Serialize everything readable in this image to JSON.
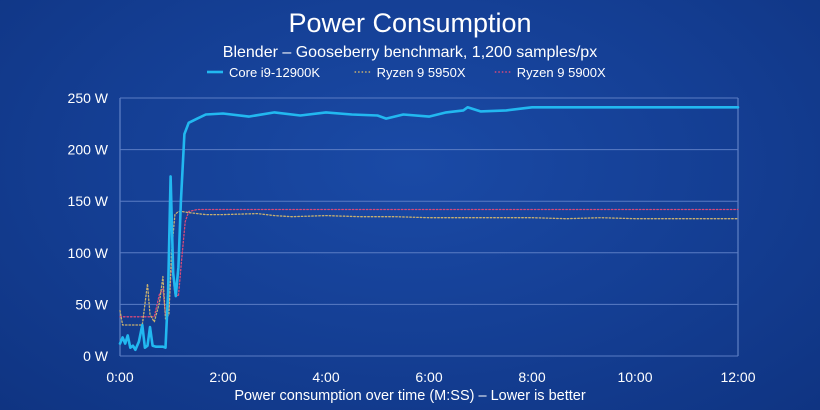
{
  "chart_data": {
    "type": "line",
    "title": "Power Consumption",
    "subtitle": "Blender – Gooseberry benchmark, 1,200 samples/px",
    "xlabel": "Power consumption over time (M:SS) – Lower is better",
    "ylabel": "",
    "xlim": [
      0,
      720
    ],
    "ylim": [
      0,
      250
    ],
    "x_ticks": [
      {
        "value": 0,
        "label": "0:00"
      },
      {
        "value": 120,
        "label": "2:00"
      },
      {
        "value": 240,
        "label": "4:00"
      },
      {
        "value": 360,
        "label": "6:00"
      },
      {
        "value": 480,
        "label": "8:00"
      },
      {
        "value": 600,
        "label": "10:00"
      },
      {
        "value": 720,
        "label": "12:00"
      }
    ],
    "y_ticks": [
      {
        "value": 0,
        "label": "0 W"
      },
      {
        "value": 50,
        "label": "50 W"
      },
      {
        "value": 100,
        "label": "100 W"
      },
      {
        "value": 150,
        "label": "150 W"
      },
      {
        "value": 200,
        "label": "200 W"
      },
      {
        "value": 250,
        "label": "250 W"
      }
    ],
    "grid": "horizontal",
    "legend_position": "top",
    "series": [
      {
        "name": "Core i9-12900K",
        "color": "#22b8f0",
        "style": "solid",
        "points": [
          [
            0,
            12
          ],
          [
            3,
            18
          ],
          [
            6,
            12
          ],
          [
            9,
            20
          ],
          [
            12,
            8
          ],
          [
            15,
            10
          ],
          [
            18,
            6
          ],
          [
            22,
            14
          ],
          [
            26,
            30
          ],
          [
            29,
            8
          ],
          [
            32,
            10
          ],
          [
            35,
            28
          ],
          [
            38,
            10
          ],
          [
            42,
            9
          ],
          [
            46,
            9
          ],
          [
            50,
            9
          ],
          [
            53,
            8
          ],
          [
            56,
            62
          ],
          [
            59,
            174
          ],
          [
            62,
            80
          ],
          [
            65,
            58
          ],
          [
            68,
            86
          ],
          [
            71,
            150
          ],
          [
            75,
            215
          ],
          [
            80,
            226
          ],
          [
            90,
            230
          ],
          [
            100,
            234
          ],
          [
            120,
            235
          ],
          [
            150,
            232
          ],
          [
            180,
            236
          ],
          [
            210,
            233
          ],
          [
            240,
            236
          ],
          [
            270,
            234
          ],
          [
            300,
            233
          ],
          [
            310,
            230
          ],
          [
            330,
            234
          ],
          [
            360,
            232
          ],
          [
            380,
            236
          ],
          [
            400,
            238
          ],
          [
            405,
            241
          ],
          [
            420,
            237
          ],
          [
            450,
            238
          ],
          [
            470,
            240
          ],
          [
            480,
            241
          ],
          [
            520,
            241
          ],
          [
            560,
            241
          ],
          [
            600,
            241
          ],
          [
            640,
            241
          ],
          [
            680,
            241
          ],
          [
            720,
            241
          ]
        ]
      },
      {
        "name": "Ryzen 9 5950X",
        "color": "#c8b070",
        "style": "dotted",
        "points": [
          [
            0,
            44
          ],
          [
            3,
            30
          ],
          [
            6,
            30
          ],
          [
            12,
            30
          ],
          [
            20,
            30
          ],
          [
            26,
            30
          ],
          [
            29,
            50
          ],
          [
            32,
            70
          ],
          [
            35,
            40
          ],
          [
            40,
            33
          ],
          [
            46,
            52
          ],
          [
            50,
            77
          ],
          [
            53,
            36
          ],
          [
            57,
            40
          ],
          [
            60,
            100
          ],
          [
            64,
            137
          ],
          [
            68,
            140
          ],
          [
            72,
            140
          ],
          [
            80,
            139
          ],
          [
            100,
            137
          ],
          [
            120,
            137
          ],
          [
            160,
            138
          ],
          [
            180,
            136
          ],
          [
            200,
            135
          ],
          [
            240,
            136
          ],
          [
            280,
            135
          ],
          [
            320,
            135
          ],
          [
            360,
            134
          ],
          [
            400,
            134
          ],
          [
            440,
            134
          ],
          [
            480,
            134
          ],
          [
            520,
            133
          ],
          [
            560,
            134
          ],
          [
            600,
            133
          ],
          [
            640,
            133
          ],
          [
            680,
            133
          ],
          [
            720,
            133
          ]
        ]
      },
      {
        "name": "Ryzen 9 5900X",
        "color": "#d64a7a",
        "style": "dotted",
        "points": [
          [
            0,
            38
          ],
          [
            10,
            38
          ],
          [
            20,
            38
          ],
          [
            30,
            38
          ],
          [
            40,
            38
          ],
          [
            46,
            60
          ],
          [
            50,
            65
          ],
          [
            53,
            40
          ],
          [
            57,
            45
          ],
          [
            60,
            90
          ],
          [
            64,
            60
          ],
          [
            68,
            58
          ],
          [
            72,
            95
          ],
          [
            76,
            130
          ],
          [
            80,
            140
          ],
          [
            90,
            142
          ],
          [
            120,
            142
          ],
          [
            200,
            142
          ],
          [
            300,
            142
          ],
          [
            400,
            142
          ],
          [
            500,
            142
          ],
          [
            600,
            142
          ],
          [
            720,
            142
          ]
        ]
      }
    ]
  }
}
